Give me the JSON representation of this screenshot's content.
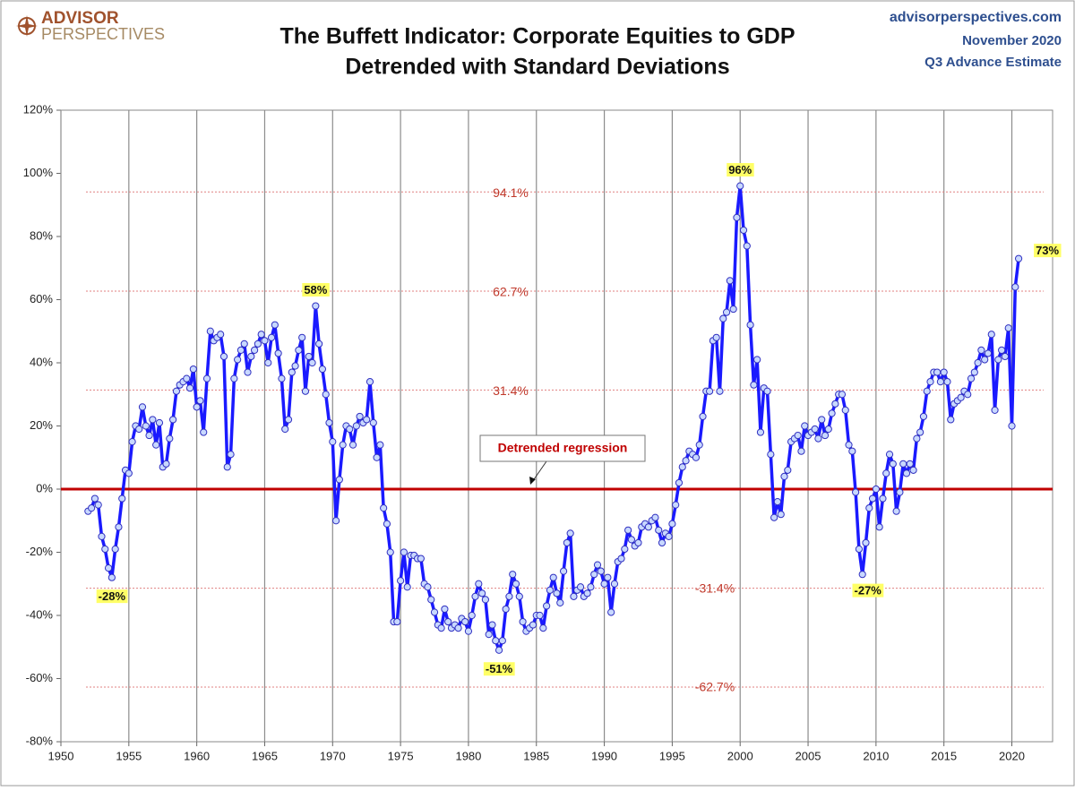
{
  "header": {
    "logo_top": "ADVISOR",
    "logo_bottom": "PERSPECTIVES",
    "site": "advisorperspectives.com",
    "date": "November 2020",
    "note": "Q3 Advance Estimate"
  },
  "chart_data": {
    "type": "line",
    "title": "The Buffett Indicator: Corporate Equities to GDP",
    "subtitle": "Detrended with Standard Deviations",
    "color": "#1a1aff",
    "xlim": [
      1950,
      2023
    ],
    "ylim": [
      -80,
      120
    ],
    "xticks": [
      1950,
      1955,
      1960,
      1965,
      1970,
      1975,
      1980,
      1985,
      1990,
      1995,
      2000,
      2005,
      2010,
      2015,
      2020
    ],
    "yticks": [
      {
        "value": -80,
        "label": "-80%"
      },
      {
        "value": -60,
        "label": "-60%"
      },
      {
        "value": -40,
        "label": "-40%"
      },
      {
        "value": -20,
        "label": "-20%"
      },
      {
        "value": 0,
        "label": "0%"
      },
      {
        "value": 20,
        "label": "20%"
      },
      {
        "value": 40,
        "label": "40%"
      },
      {
        "value": 60,
        "label": "60%"
      },
      {
        "value": 80,
        "label": "80%"
      },
      {
        "value": 100,
        "label": "100%"
      },
      {
        "value": 120,
        "label": "120%"
      }
    ],
    "grid": true,
    "regression": {
      "value": 0,
      "label": "Detrended regression",
      "color": "#c00000"
    },
    "bands": [
      {
        "value": 94.1,
        "label": "94.1%"
      },
      {
        "value": 62.7,
        "label": "62.7%"
      },
      {
        "value": 31.4,
        "label": "31.4%"
      },
      {
        "value": -31.4,
        "label": "-31.4%"
      },
      {
        "value": -62.7,
        "label": "-62.7%"
      }
    ],
    "annotations": [
      {
        "x": 1953.75,
        "value": -28,
        "label": "-28%"
      },
      {
        "x": 1968.75,
        "value": 58,
        "label": "58%"
      },
      {
        "x": 1982.25,
        "value": -51,
        "label": "-51%"
      },
      {
        "x": 2000.0,
        "value": 96,
        "label": "96%"
      },
      {
        "x": 2009.0,
        "value": -27,
        "label": "-27%"
      },
      {
        "x": 2020.5,
        "value": 73,
        "label": "73%"
      }
    ],
    "x": [
      1952.0,
      1952.25,
      1952.5,
      1952.75,
      1953.0,
      1953.25,
      1953.5,
      1953.75,
      1954.0,
      1954.25,
      1954.5,
      1954.75,
      1955.0,
      1955.25,
      1955.5,
      1955.75,
      1956.0,
      1956.25,
      1956.5,
      1956.75,
      1957.0,
      1957.25,
      1957.5,
      1957.75,
      1958.0,
      1958.25,
      1958.5,
      1958.75,
      1959.0,
      1959.25,
      1959.5,
      1959.75,
      1960.0,
      1960.25,
      1960.5,
      1960.75,
      1961.0,
      1961.25,
      1961.5,
      1961.75,
      1962.0,
      1962.25,
      1962.5,
      1962.75,
      1963.0,
      1963.25,
      1963.5,
      1963.75,
      1964.0,
      1964.25,
      1964.5,
      1964.75,
      1965.0,
      1965.25,
      1965.5,
      1965.75,
      1966.0,
      1966.25,
      1966.5,
      1966.75,
      1967.0,
      1967.25,
      1967.5,
      1967.75,
      1968.0,
      1968.25,
      1968.5,
      1968.75,
      1969.0,
      1969.25,
      1969.5,
      1969.75,
      1970.0,
      1970.25,
      1970.5,
      1970.75,
      1971.0,
      1971.25,
      1971.5,
      1971.75,
      1972.0,
      1972.25,
      1972.5,
      1972.75,
      1973.0,
      1973.25,
      1973.5,
      1973.75,
      1974.0,
      1974.25,
      1974.5,
      1974.75,
      1975.0,
      1975.25,
      1975.5,
      1975.75,
      1976.0,
      1976.25,
      1976.5,
      1976.75,
      1977.0,
      1977.25,
      1977.5,
      1977.75,
      1978.0,
      1978.25,
      1978.5,
      1978.75,
      1979.0,
      1979.25,
      1979.5,
      1979.75,
      1980.0,
      1980.25,
      1980.5,
      1980.75,
      1981.0,
      1981.25,
      1981.5,
      1981.75,
      1982.0,
      1982.25,
      1982.5,
      1982.75,
      1983.0,
      1983.25,
      1983.5,
      1983.75,
      1984.0,
      1984.25,
      1984.5,
      1984.75,
      1985.0,
      1985.25,
      1985.5,
      1985.75,
      1986.0,
      1986.25,
      1986.5,
      1986.75,
      1987.0,
      1987.25,
      1987.5,
      1987.75,
      1988.0,
      1988.25,
      1988.5,
      1988.75,
      1989.0,
      1989.25,
      1989.5,
      1989.75,
      1990.0,
      1990.25,
      1990.5,
      1990.75,
      1991.0,
      1991.25,
      1991.5,
      1991.75,
      1992.0,
      1992.25,
      1992.5,
      1992.75,
      1993.0,
      1993.25,
      1993.5,
      1993.75,
      1994.0,
      1994.25,
      1994.5,
      1994.75,
      1995.0,
      1995.25,
      1995.5,
      1995.75,
      1996.0,
      1996.25,
      1996.5,
      1996.75,
      1997.0,
      1997.25,
      1997.5,
      1997.75,
      1998.0,
      1998.25,
      1998.5,
      1998.75,
      1999.0,
      1999.25,
      1999.5,
      1999.75,
      2000.0,
      2000.25,
      2000.5,
      2000.75,
      2001.0,
      2001.25,
      2001.5,
      2001.75,
      2002.0,
      2002.25,
      2002.5,
      2002.75,
      2003.0,
      2003.25,
      2003.5,
      2003.75,
      2004.0,
      2004.25,
      2004.5,
      2004.75,
      2005.0,
      2005.25,
      2005.5,
      2005.75,
      2006.0,
      2006.25,
      2006.5,
      2006.75,
      2007.0,
      2007.25,
      2007.5,
      2007.75,
      2008.0,
      2008.25,
      2008.5,
      2008.75,
      2009.0,
      2009.25,
      2009.5,
      2009.75,
      2010.0,
      2010.25,
      2010.5,
      2010.75,
      2011.0,
      2011.25,
      2011.5,
      2011.75,
      2012.0,
      2012.25,
      2012.5,
      2012.75,
      2013.0,
      2013.25,
      2013.5,
      2013.75,
      2014.0,
      2014.25,
      2014.5,
      2014.75,
      2015.0,
      2015.25,
      2015.5,
      2015.75,
      2016.0,
      2016.25,
      2016.5,
      2016.75,
      2017.0,
      2017.25,
      2017.5,
      2017.75,
      2018.0,
      2018.25,
      2018.5,
      2018.75,
      2019.0,
      2019.25,
      2019.5,
      2019.75,
      2020.0,
      2020.25,
      2020.5
    ],
    "values": [
      -7,
      -6,
      -3,
      -5,
      -15,
      -19,
      -25,
      -28,
      -19,
      -12,
      -3,
      6,
      5,
      15,
      20,
      19,
      26,
      20,
      17,
      22,
      14,
      21,
      7,
      8,
      16,
      22,
      31,
      33,
      34,
      35,
      32,
      38,
      26,
      28,
      18,
      35,
      50,
      47,
      48,
      49,
      42,
      7,
      11,
      35,
      41,
      44,
      46,
      37,
      42,
      44,
      46,
      49,
      47,
      40,
      48,
      52,
      43,
      35,
      19,
      22,
      37,
      39,
      44,
      48,
      31,
      42,
      40,
      58,
      46,
      38,
      30,
      21,
      15,
      -10,
      3,
      14,
      20,
      19,
      14,
      20,
      23,
      21,
      22,
      34,
      21,
      10,
      14,
      -6,
      -11,
      -20,
      -42,
      -42,
      -29,
      -20,
      -31,
      -21,
      -21,
      -22,
      -22,
      -30,
      -31,
      -35,
      -39,
      -43,
      -44,
      -38,
      -42,
      -44,
      -43,
      -44,
      -41,
      -42,
      -45,
      -40,
      -34,
      -30,
      -33,
      -35,
      -46,
      -43,
      -48,
      -51,
      -48,
      -38,
      -34,
      -27,
      -30,
      -34,
      -42,
      -45,
      -44,
      -43,
      -40,
      -40,
      -44,
      -37,
      -32,
      -28,
      -33,
      -36,
      -26,
      -17,
      -14,
      -34,
      -32,
      -31,
      -34,
      -33,
      -31,
      -27,
      -24,
      -26,
      -30,
      -28,
      -39,
      -30,
      -23,
      -22,
      -19,
      -13,
      -16,
      -18,
      -17,
      -12,
      -11,
      -12,
      -10,
      -9,
      -13,
      -17,
      -14,
      -15,
      -11,
      -5,
      2,
      7,
      9,
      12,
      11,
      10,
      14,
      23,
      31,
      31,
      47,
      48,
      31,
      54,
      56,
      66,
      57,
      86,
      96,
      82,
      77,
      52,
      33,
      41,
      18,
      32,
      31,
      11,
      -9,
      -4,
      -8,
      4,
      6,
      15,
      16,
      17,
      12,
      20,
      17,
      18,
      19,
      16,
      22,
      17,
      19,
      24,
      27,
      30,
      30,
      25,
      14,
      12,
      -1,
      -19,
      -27,
      -17,
      -6,
      -3,
      0,
      -12,
      -3,
      5,
      11,
      8,
      -7,
      -1,
      8,
      5,
      8,
      6,
      16,
      18,
      23,
      31,
      34,
      37,
      37,
      34,
      37,
      34,
      22,
      27,
      28,
      29,
      31,
      30,
      35,
      37,
      40,
      44,
      41,
      43,
      49,
      25,
      41,
      44,
      42,
      51,
      20,
      64,
      73
    ]
  }
}
